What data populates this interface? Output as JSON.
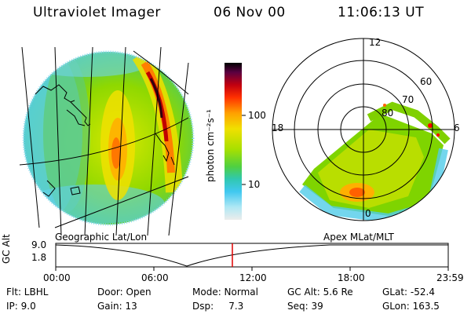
{
  "header": {
    "instrument": "Ultraviolet Imager",
    "date": "06 Nov 00",
    "time": "11:06:13 UT"
  },
  "colorbar": {
    "label": "photon cm⁻²s⁻¹",
    "ticks": [
      "100",
      "10"
    ],
    "colors": [
      "#000000",
      "#3a0a2a",
      "#6a0040",
      "#b00010",
      "#ff0000",
      "#ff6000",
      "#ffb000",
      "#f0e000",
      "#c8e000",
      "#80d000",
      "#30c8a0",
      "#30c0f0",
      "#80e0f0",
      "#c8f0f8",
      "#e8e8e8"
    ]
  },
  "left_panel": {
    "label": "Geographic Lat/Lon"
  },
  "right_panel": {
    "label": "Apex MLat/MLT",
    "mlt_labels": {
      "top": "12",
      "left": "18",
      "right": "6",
      "bottom": "0"
    },
    "lat_labels": [
      "60",
      "70",
      "80"
    ]
  },
  "altitude_plot": {
    "ylabel": "GC Alt",
    "yticks": [
      "9.0",
      "1.8"
    ],
    "xticks": [
      "00:00",
      "06:00",
      "12:00",
      "18:00",
      "23:59"
    ],
    "marker_color": "#e00000",
    "curve_color": "#000000"
  },
  "info": {
    "flt": "Flt: LBHL",
    "ip": "IP:  9.0",
    "door": "Door: Open",
    "gain": "Gain: 13",
    "mode": "Mode: Normal",
    "dsp": "Dsp:     7.3",
    "gcalt": "GC Alt: 5.6 Re",
    "seq": "Seq: 39",
    "glat": "GLat: -52.4",
    "glon": "GLon: 163.5"
  }
}
